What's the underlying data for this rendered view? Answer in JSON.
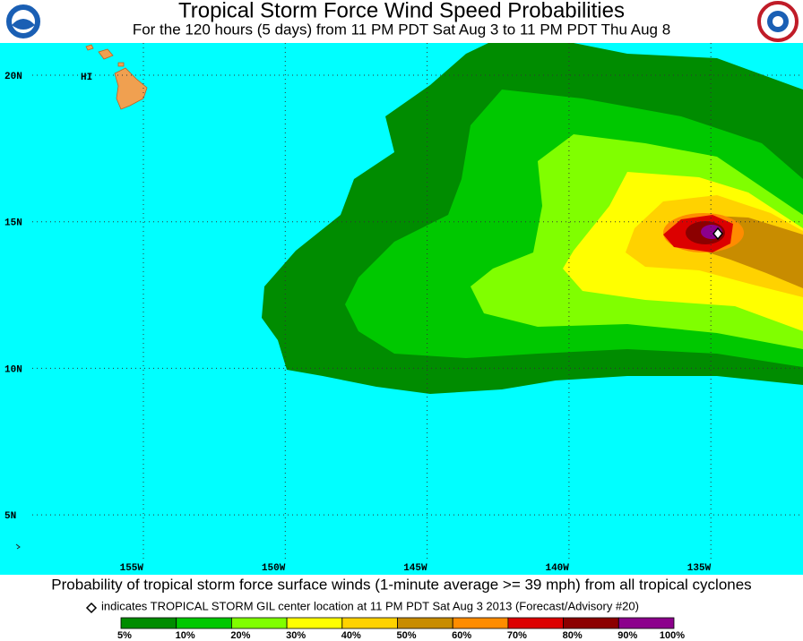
{
  "header": {
    "title": "Tropical Storm Force Wind Speed Probabilities",
    "subtitle": "For the 120 hours (5 days) from 11 PM PDT Sat Aug 3 to 11 PM PDT Thu Aug 8"
  },
  "map": {
    "lat_labels": [
      "20N",
      "15N",
      "10N",
      "5N"
    ],
    "lon_labels": [
      "155W",
      "150W",
      "145W",
      "140W",
      "135W"
    ],
    "place_label": "HI"
  },
  "footer": {
    "description": "Probability of tropical storm force surface winds (1-minute average >= 39 mph) from all tropical cyclones",
    "note": "indicates TROPICAL STORM GIL center location at 11 PM PDT Sat Aug 3 2013 (Forecast/Advisory #20)"
  },
  "legend": {
    "colors": [
      "#008c00",
      "#00c800",
      "#80ff00",
      "#ffff00",
      "#ffd200",
      "#c88c00",
      "#ff8c00",
      "#dc0000",
      "#8c0000",
      "#8c008c"
    ],
    "labels": [
      "5%",
      "10%",
      "20%",
      "30%",
      "40%",
      "50%",
      "60%",
      "70%",
      "80%",
      "90%",
      "100%"
    ]
  }
}
